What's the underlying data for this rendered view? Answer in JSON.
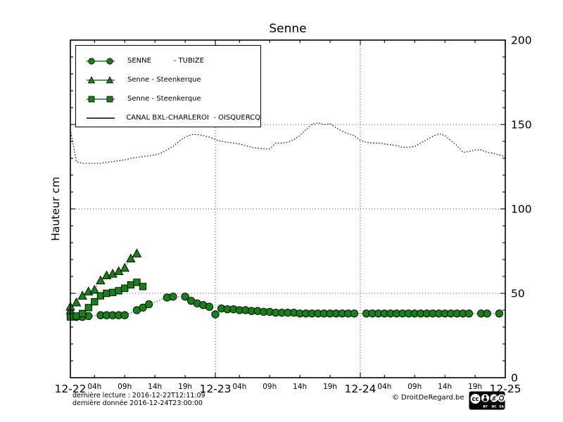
{
  "page": {
    "footer": {
      "line1": "dernière lecture : 2016-12-22T12:11:09",
      "line2": "dernière donnée  2016-12-24T23:00:00",
      "copyright": "© DroitDeRegard.be",
      "license_labels": [
        "BY",
        "NC",
        "SA"
      ],
      "license_logo": "cc"
    }
  },
  "chart_data": {
    "type": "line",
    "title": "Senne",
    "ylabel": "Hauteur cm",
    "ylim": [
      0,
      200
    ],
    "y_ticks": [
      0,
      50,
      100,
      150,
      200
    ],
    "y_minor_step": 10,
    "grid": true,
    "legend_position": "top-left",
    "x_days": [
      "12-22",
      "12-23",
      "12-24",
      "12-25"
    ],
    "x_hour_labels": [
      "04h",
      "09h",
      "14h",
      "19h"
    ],
    "x_hour_positions": [
      4,
      9,
      14,
      19
    ],
    "hours_span": 72,
    "colors": {
      "green": "#1a7f1a",
      "black": "#000000"
    },
    "series": [
      {
        "label": "SENNE          - TUBIZE",
        "marker": "circle",
        "color": "green",
        "start_hour": 0,
        "step_hours": 1,
        "values": [
          38,
          36,
          36,
          36.5,
          null,
          37,
          37,
          37,
          37,
          37,
          null,
          40,
          41.5,
          43.5,
          null,
          null,
          47.5,
          48,
          null,
          48,
          45.5,
          44,
          43,
          42,
          37.5,
          41,
          40.5,
          40.5,
          40,
          40,
          39.5,
          39.5,
          39,
          39,
          38.5,
          38.5,
          38.5,
          38.5,
          38,
          38,
          38,
          38,
          38,
          38,
          38,
          38,
          38,
          38,
          null,
          38,
          38,
          38,
          38,
          38,
          38,
          38,
          38,
          38,
          38,
          38,
          38,
          38,
          38,
          38,
          38,
          38,
          38,
          null,
          38,
          38,
          null,
          38
        ]
      },
      {
        "label": "Senne - Steenkerque",
        "marker": "triangle",
        "color": "green",
        "start_hour": 0,
        "step_hours": 1,
        "values": [
          42,
          44.5,
          48.5,
          51,
          52,
          57.5,
          60.5,
          61.5,
          63,
          65,
          70.5,
          73.5
        ]
      },
      {
        "label": "Senne - Steenkerque",
        "marker": "square",
        "color": "green",
        "start_hour": 0,
        "step_hours": 1,
        "values": [
          36,
          36.5,
          38,
          41.5,
          45,
          48.5,
          50,
          50.5,
          51.5,
          53,
          55,
          56.5,
          54
        ]
      },
      {
        "label": "CANAL BXL-CHARLEROI  - OISQUERCQ",
        "marker": "none",
        "color": "black",
        "start_hour": 0,
        "step_hours": 1,
        "values": [
          147,
          128,
          127,
          127,
          127,
          127,
          127.5,
          128,
          128.5,
          129,
          130,
          130.5,
          131,
          131.5,
          132,
          133,
          135,
          137,
          140,
          142.5,
          144,
          144,
          143.5,
          142.5,
          141,
          140,
          139.5,
          139,
          138.5,
          137.5,
          136.5,
          136,
          135.5,
          135.5,
          139,
          139,
          139.5,
          141,
          143.5,
          147,
          150,
          151,
          150,
          150.5,
          148,
          146,
          144.5,
          143.5,
          140.5,
          139.5,
          139,
          139,
          138.5,
          138,
          137.5,
          136.5,
          136.5,
          137,
          139,
          141,
          143,
          144.5,
          143.5,
          140.5,
          137.5,
          133.5,
          134,
          135,
          135,
          133.5,
          133,
          132,
          131
        ]
      }
    ]
  }
}
